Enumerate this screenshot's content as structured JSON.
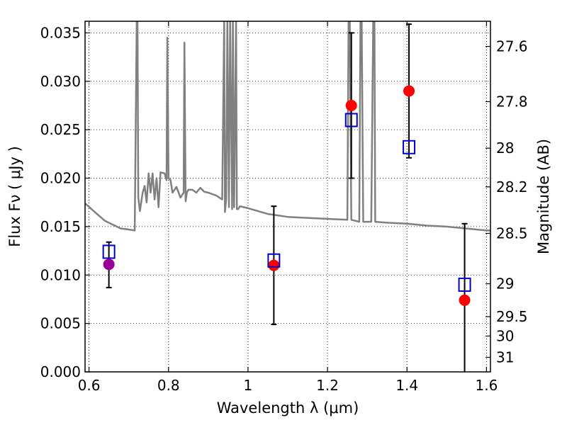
{
  "chart_data": {
    "type": "scatter",
    "xlabel": "Wavelength  λ (μm)",
    "ylabel": "Flux  Fν  ( μJy )",
    "y2label": "Magnitude (AB)",
    "xlim": [
      0.59,
      1.61
    ],
    "ylim": [
      0.0,
      0.0362
    ],
    "xticks": [
      0.6,
      0.8,
      1.0,
      1.2,
      1.4,
      1.6
    ],
    "xtick_labels": [
      "0.6",
      "0.8",
      "1",
      "1.2",
      "1.4",
      "1.6"
    ],
    "yticks": [
      0.0,
      0.005,
      0.01,
      0.015,
      0.02,
      0.025,
      0.03,
      0.035
    ],
    "ytick_labels": [
      "0.000",
      "0.005",
      "0.010",
      "0.015",
      "0.020",
      "0.025",
      "0.030",
      "0.035"
    ],
    "y2ticks": [
      {
        "label": "27.6",
        "flux": 0.0336
      },
      {
        "label": "27.8",
        "flux": 0.0279
      },
      {
        "label": "28",
        "flux": 0.0231
      },
      {
        "label": "28.2",
        "flux": 0.0191
      },
      {
        "label": "28.5",
        "flux": 0.0143
      },
      {
        "label": "29",
        "flux": 0.0091
      },
      {
        "label": "29.5",
        "flux": 0.0057
      },
      {
        "label": "30",
        "flux": 0.0037
      },
      {
        "label": "31",
        "flux": 0.0015
      }
    ],
    "grid": true,
    "grid_style": "dotted",
    "colors": {
      "model": "#808080",
      "observed": "#ff0000",
      "observed_first": "#990099",
      "model_box": "#0000cc",
      "errorbar": "#000000"
    },
    "model_spectrum": {
      "x": [
        0.59,
        0.62,
        0.64,
        0.66,
        0.68,
        0.7,
        0.715,
        0.72,
        0.722,
        0.724,
        0.728,
        0.735,
        0.74,
        0.745,
        0.75,
        0.755,
        0.76,
        0.765,
        0.77,
        0.775,
        0.78,
        0.79,
        0.795,
        0.797,
        0.8,
        0.805,
        0.81,
        0.82,
        0.83,
        0.838,
        0.84,
        0.843,
        0.846,
        0.85,
        0.86,
        0.87,
        0.88,
        0.89,
        0.9,
        0.92,
        0.935,
        0.94,
        0.942,
        0.945,
        0.948,
        0.952,
        0.955,
        0.96,
        0.962,
        0.965,
        0.97,
        0.972,
        0.975,
        0.98,
        1.0,
        1.05,
        1.1,
        1.15,
        1.2,
        1.25,
        1.253,
        1.256,
        1.26,
        1.27,
        1.28,
        1.283,
        1.286,
        1.29,
        1.3,
        1.31,
        1.315,
        1.318,
        1.32,
        1.35,
        1.4,
        1.45,
        1.5,
        1.55,
        1.6,
        1.61
      ],
      "y": [
        0.0174,
        0.0163,
        0.0156,
        0.0152,
        0.0148,
        0.0147,
        0.0146,
        0.0362,
        0.0362,
        0.018,
        0.0166,
        0.0185,
        0.0192,
        0.0175,
        0.0205,
        0.0185,
        0.0205,
        0.0178,
        0.02,
        0.017,
        0.0206,
        0.0205,
        0.0198,
        0.0345,
        0.02,
        0.0198,
        0.0185,
        0.0191,
        0.018,
        0.0185,
        0.034,
        0.0176,
        0.0185,
        0.0188,
        0.0188,
        0.0185,
        0.019,
        0.0186,
        0.0185,
        0.0182,
        0.0178,
        0.0362,
        0.0165,
        0.0178,
        0.0362,
        0.017,
        0.0362,
        0.0168,
        0.0362,
        0.017,
        0.0362,
        0.0168,
        0.0168,
        0.0171,
        0.0169,
        0.0163,
        0.016,
        0.0159,
        0.0158,
        0.0157,
        0.0362,
        0.0362,
        0.0157,
        0.0156,
        0.0155,
        0.0362,
        0.0362,
        0.0155,
        0.0155,
        0.0155,
        0.0362,
        0.0362,
        0.0155,
        0.0154,
        0.0153,
        0.0151,
        0.015,
        0.0148,
        0.0146,
        0.0146
      ]
    },
    "observed_points": [
      {
        "x": 0.65,
        "y": 0.0111,
        "yerr_low": 0.0087,
        "yerr_high": 0.0134
      },
      {
        "x": 1.065,
        "y": 0.011,
        "yerr_low": 0.0049,
        "yerr_high": 0.0171
      },
      {
        "x": 1.26,
        "y": 0.0275,
        "yerr_low": 0.02,
        "yerr_high": 0.035
      },
      {
        "x": 1.405,
        "y": 0.029,
        "yerr_low": 0.0221,
        "yerr_high": 0.0359
      },
      {
        "x": 1.545,
        "y": 0.0074,
        "yerr_low": 0.0,
        "yerr_high": 0.0153
      }
    ],
    "model_points": [
      {
        "x": 0.65,
        "y": 0.0124
      },
      {
        "x": 1.065,
        "y": 0.0115
      },
      {
        "x": 1.26,
        "y": 0.026
      },
      {
        "x": 1.405,
        "y": 0.0232
      },
      {
        "x": 1.545,
        "y": 0.009
      }
    ]
  }
}
